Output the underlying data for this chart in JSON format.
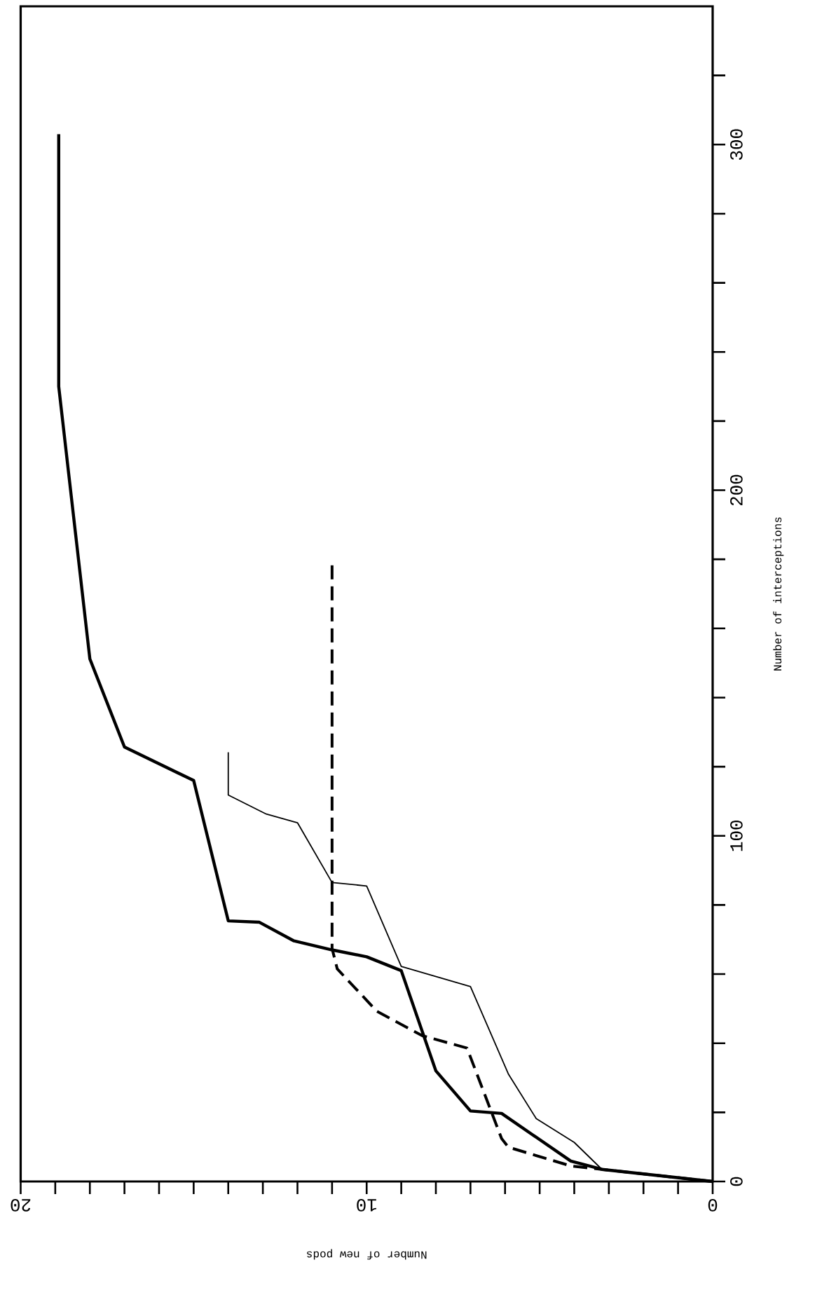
{
  "chart_data": {
    "type": "line",
    "xlabel": "Number of new pods",
    "ylabel": "Number of interceptions",
    "xlim": [
      20,
      0
    ],
    "ylim": [
      0,
      340
    ],
    "xticks": [
      0,
      10,
      20
    ],
    "yticks": [
      0,
      100,
      200,
      300
    ],
    "series": [
      {
        "color": "#000000",
        "line_style": "solid",
        "x": [
          0,
          3.2,
          4.1,
          6.1,
          7.0,
          8.0,
          9.0,
          10.0,
          11.0,
          12.1,
          13.1,
          14.0,
          15.0,
          17.0,
          18.0,
          18.9,
          18.9
        ],
        "values": [
          0,
          3.5,
          5.9,
          19.7,
          20.4,
          32,
          61,
          65,
          67,
          69.6,
          75,
          75.4,
          116,
          125.7,
          151.2,
          230,
          303
        ]
      },
      {
        "color": "#000000",
        "line_style": "solid",
        "x": [
          0,
          3.2,
          4.0,
          5.1,
          5.9,
          7.0,
          9.0,
          10.0,
          11.0,
          12.0,
          12.9,
          14.0,
          14.0
        ],
        "values": [
          0,
          3.5,
          11.3,
          18.2,
          31,
          56.4,
          62.2,
          85.5,
          86.5,
          103.8,
          106.3,
          111.8,
          124.2
        ]
      },
      {
        "color": "#000000",
        "line_style": "dashed",
        "x": [
          0,
          3.2,
          4.1,
          5.9,
          6.1,
          7.1,
          8.4,
          9.7,
          10.85,
          11.0,
          11.0
        ],
        "values": [
          0,
          3.5,
          4.5,
          9.9,
          12.4,
          38.6,
          42.2,
          49.2,
          61.5,
          67.4,
          180
        ]
      }
    ]
  }
}
